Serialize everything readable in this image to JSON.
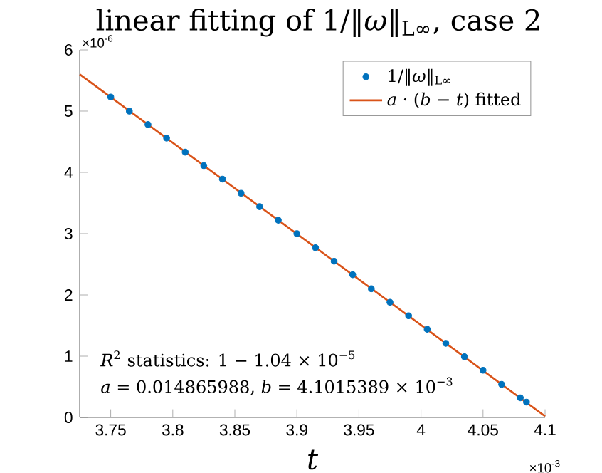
{
  "chart_data": {
    "type": "scatter",
    "title": "linear fitting of 1/‖*ω*‖$_{L∞}$, case 2",
    "xlabel": "t",
    "x": [
      3.75,
      3.765,
      3.78,
      3.795,
      3.81,
      3.825,
      3.84,
      3.855,
      3.87,
      3.885,
      3.9,
      3.915,
      3.93,
      3.945,
      3.96,
      3.975,
      3.99,
      4.005,
      4.02,
      4.035,
      4.05,
      4.065,
      4.08,
      4.085
    ],
    "series": [
      {
        "name": "1/‖*ω*‖$_{L∞}$",
        "marker": "circle",
        "color": "#0072bd",
        "values": [
          5.23,
          5.0,
          4.78,
          4.56,
          4.33,
          4.11,
          3.89,
          3.66,
          3.44,
          3.22,
          3.0,
          2.77,
          2.55,
          2.33,
          2.1,
          1.88,
          1.66,
          1.44,
          1.21,
          0.99,
          0.77,
          0.54,
          0.32,
          0.25
        ]
      },
      {
        "name": "*a* · (*b* − *t*) fitted",
        "type": "line",
        "marker": "none",
        "color": "#d95319",
        "x": [
          3.725,
          4.1
        ],
        "values": [
          5.6,
          0.02
        ]
      }
    ],
    "xlim": [
      3.725,
      4.1
    ],
    "ylim": [
      0,
      6
    ],
    "xticks": [
      3.75,
      3.8,
      3.85,
      3.9,
      3.95,
      4,
      4.05,
      4.1
    ],
    "yticks": [
      0,
      1,
      2,
      3,
      4,
      5,
      6
    ],
    "legend": "top right",
    "grid": false,
    "annotations": [
      "*R*$^{2}$ statistics: 1 − 1.04 × 10$^{−5}$",
      "*a* = 0.014865988, *b* = 4.1015389 × 10$^{−3}$",
      "×10$^{-6}$",
      "×10$^{-3}$"
    ]
  }
}
